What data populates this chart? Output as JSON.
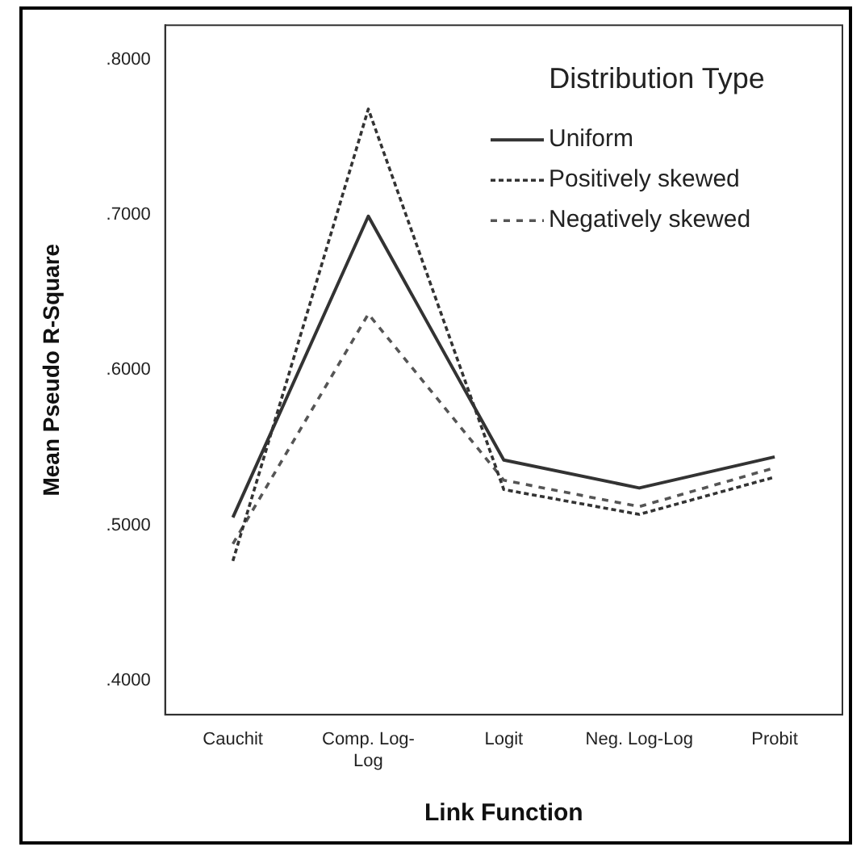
{
  "chart_data": {
    "type": "line",
    "xlabel": "Link Function",
    "ylabel": "Mean Pseudo R-Square",
    "legend_title": "Distribution Type",
    "legend": "top right",
    "grid": false,
    "marker": "none",
    "categories": [
      "Cauchit",
      "Comp. Log-Log",
      "Logit",
      "Neg. Log-Log",
      "Probit"
    ],
    "ylim": [
      0.378,
      0.822
    ],
    "yticks": [
      {
        "value": 0.4,
        "label": ".4000"
      },
      {
        "value": 0.5,
        "label": ".5000"
      },
      {
        "value": 0.6,
        "label": ".6000"
      },
      {
        "value": 0.7,
        "label": ".7000"
      },
      {
        "value": 0.8,
        "label": ".8000"
      }
    ],
    "series": [
      {
        "name": "Uniform",
        "color": "#333333",
        "line_style": "solid",
        "values": [
          0.505,
          0.699,
          0.542,
          0.524,
          0.544
        ]
      },
      {
        "name": "Positively skewed",
        "color": "#333333",
        "line_style": "dotted",
        "values": [
          0.477,
          0.768,
          0.523,
          0.507,
          0.531
        ]
      },
      {
        "name": "Negatively skewed",
        "color": "#555555",
        "line_style": "dashed",
        "values": [
          0.488,
          0.636,
          0.529,
          0.512,
          0.537
        ]
      }
    ]
  }
}
